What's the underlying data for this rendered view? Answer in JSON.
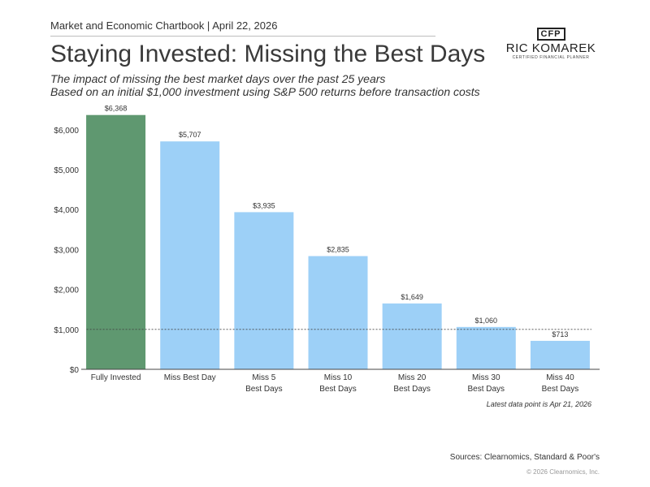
{
  "header": {
    "chartbook": "Market and Economic Chartbook | April 22, 2026",
    "title": "Staying Invested: Missing the Best Days",
    "subtitle_line1": "The impact of missing the best market days over the past 25 years",
    "subtitle_line2": "Based on an initial $1,000 investment using S&P 500 returns before transaction costs"
  },
  "logo": {
    "mark": "CFP",
    "name": "RIC KOMAREK",
    "tagline": "CERTIFIED FINANCIAL PLANNER"
  },
  "chart_data": {
    "type": "bar",
    "categories": [
      [
        "Fully Invested"
      ],
      [
        "Miss Best Day"
      ],
      [
        "Miss 5",
        "Best Days"
      ],
      [
        "Miss 10",
        "Best Days"
      ],
      [
        "Miss 20",
        "Best Days"
      ],
      [
        "Miss 30",
        "Best Days"
      ],
      [
        "Miss 40",
        "Best Days"
      ]
    ],
    "values": [
      6368,
      5707,
      3935,
      2835,
      1649,
      1060,
      713
    ],
    "data_labels": [
      "$6,368",
      "$5,707",
      "$3,935",
      "$2,835",
      "$1,649",
      "$1,060",
      "$713"
    ],
    "yticks": [
      0,
      1000,
      2000,
      3000,
      4000,
      5000,
      6000
    ],
    "ytick_labels": [
      "$0",
      "$1,000",
      "$2,000",
      "$3,000",
      "$4,000",
      "$5,000",
      "$6,000"
    ],
    "ylim": [
      0,
      6500
    ],
    "reference_line": 1000,
    "colors": {
      "highlight": "#5f9870",
      "bar": "#9dd0f7"
    }
  },
  "footnote": "Latest data point is Apr 21, 2026",
  "sources": "Sources: Clearnomics, Standard & Poor's",
  "copyright": "© 2026 Clearnomics, Inc."
}
